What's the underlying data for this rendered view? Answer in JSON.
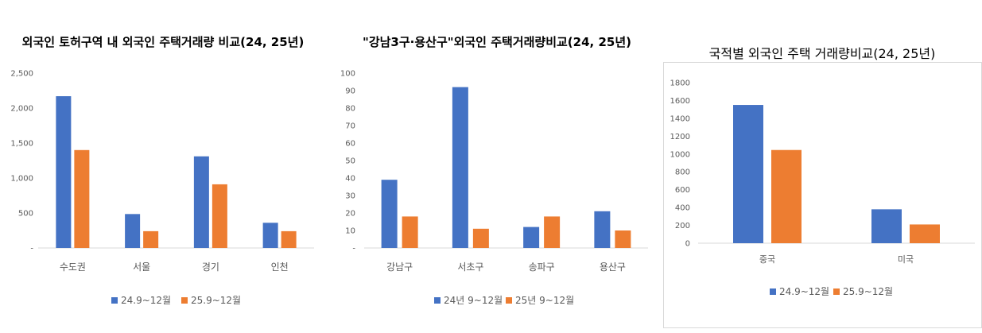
{
  "chart_data": [
    {
      "type": "bar",
      "title": "외국인 토허구역 내 외국인 주택거래량 비교(24, 25년)",
      "categories": [
        "수도권",
        "서울",
        "경기",
        "인천"
      ],
      "series": [
        {
          "name": "24.9~12월",
          "values": [
            2170,
            485,
            1310,
            360
          ]
        },
        {
          "name": "25.9~12월",
          "values": [
            1400,
            240,
            910,
            240
          ]
        }
      ],
      "ylim": [
        0,
        2500
      ],
      "yticks": [
        0,
        500,
        1000,
        1500,
        2000,
        2500
      ],
      "ytick_labels": [
        "-",
        "500",
        "1,000",
        "1,500",
        "2,000",
        "2,500"
      ],
      "grid": false,
      "legend": "bottom"
    },
    {
      "type": "bar",
      "title": "\"강남3구·용산구\"외국인 주택거래량비교(24, 25년)",
      "categories": [
        "강남구",
        "서초구",
        "송파구",
        "용산구"
      ],
      "series": [
        {
          "name": "24년 9~12월",
          "values": [
            39,
            92,
            12,
            21
          ]
        },
        {
          "name": "25년 9~12월",
          "values": [
            18,
            11,
            18,
            10
          ]
        }
      ],
      "ylim": [
        0,
        100
      ],
      "yticks": [
        0,
        10,
        20,
        30,
        40,
        50,
        60,
        70,
        80,
        90,
        100
      ],
      "ytick_labels": [
        "-",
        "10",
        "20",
        "30",
        "40",
        "50",
        "60",
        "70",
        "80",
        "90",
        "100"
      ],
      "grid": false,
      "legend": "bottom"
    },
    {
      "type": "bar",
      "title": "국적별 외국인 주택 거래량비교(24, 25년)",
      "categories": [
        "중국",
        "미국"
      ],
      "series": [
        {
          "name": "24.9~12월",
          "values": [
            1550,
            380
          ]
        },
        {
          "name": "25.9~12월",
          "values": [
            1045,
            210
          ]
        }
      ],
      "ylim": [
        0,
        1800
      ],
      "yticks": [
        0,
        200,
        400,
        600,
        800,
        1000,
        1200,
        1400,
        1600,
        1800
      ],
      "ytick_labels": [
        "0",
        "200",
        "400",
        "600",
        "800",
        "1000",
        "1200",
        "1400",
        "1600",
        "1800"
      ],
      "grid": false,
      "legend": "bottom"
    }
  ],
  "colors": {
    "series1": "#4472C4",
    "series2": "#ED7D31",
    "axis": "#d9d9d9",
    "text": "#595959"
  }
}
